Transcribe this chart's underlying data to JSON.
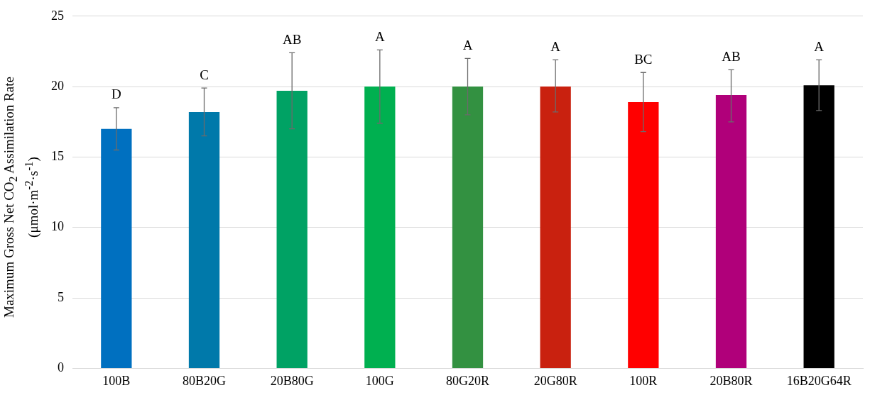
{
  "chart_data": {
    "type": "bar",
    "ylabel": "Maximum Gross Net CO$_{2}$ Assimilation Rate\n(μmol·m$^{-2}$·s$^{-1}$)",
    "categories": [
      "100B",
      "80B20G",
      "20B80G",
      "100G",
      "80G20R",
      "20G80R",
      "100R",
      "20B80R",
      "16B20G64R"
    ],
    "values": [
      17.0,
      18.2,
      19.7,
      20.0,
      20.0,
      20.0,
      18.9,
      19.4,
      20.1
    ],
    "colors": [
      "#0070c0",
      "#0079aa",
      "#00a264",
      "#00b050",
      "#339141",
      "#c9210f",
      "#ff0000",
      "#b0007a",
      "#000000"
    ],
    "errors": [
      [
        15.5,
        18.5
      ],
      [
        16.5,
        19.9
      ],
      [
        17.0,
        22.4
      ],
      [
        17.4,
        22.6
      ],
      [
        18.0,
        22.0
      ],
      [
        18.2,
        21.9
      ],
      [
        16.8,
        21.0
      ],
      [
        17.5,
        21.2
      ],
      [
        18.3,
        21.9
      ]
    ],
    "annotations": [
      {
        "text": "D",
        "x": "100B",
        "y": 18.5
      },
      {
        "text": "C",
        "x": "80B20G",
        "y": 19.9
      },
      {
        "text": "AB",
        "x": "20B80G",
        "y": 22.4
      },
      {
        "text": "A",
        "x": "100G",
        "y": 22.6
      },
      {
        "text": "A",
        "x": "80G20R",
        "y": 22.0
      },
      {
        "text": "A",
        "x": "20G80R",
        "y": 21.9
      },
      {
        "text": "BC",
        "x": "100R",
        "y": 21.0
      },
      {
        "text": "AB",
        "x": "20B80R",
        "y": 21.2
      },
      {
        "text": "A",
        "x": "16B20G64R",
        "y": 21.9
      }
    ],
    "ylim": [
      0,
      25
    ],
    "yticks": [
      0,
      5,
      10,
      15,
      20,
      25
    ],
    "grid": "y",
    "legend": false
  }
}
